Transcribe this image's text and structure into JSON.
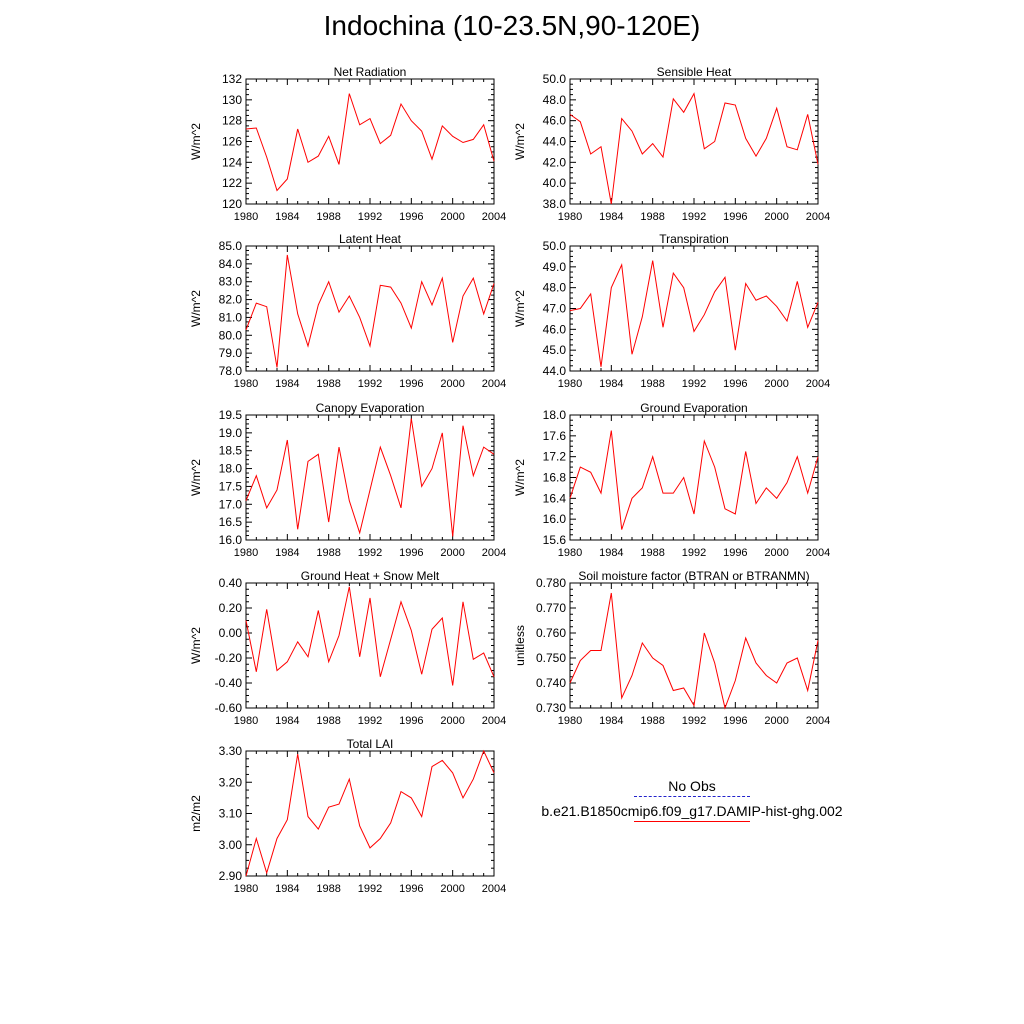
{
  "title": "Indochina (10-23.5N,90-120E)",
  "legend": {
    "obs_label": "No Obs",
    "case_label": "b.e21.B1850cmip6.f09_g17.DAMIP-hist-ghg.002",
    "obs_color": "#2222cc",
    "case_color": "#ff0000"
  },
  "chart_data": [
    {
      "type": "line",
      "title": "Net Radiation",
      "ylabel": "W/m^2",
      "ylim": [
        120,
        132
      ],
      "yticks": [
        "120",
        "122",
        "124",
        "126",
        "128",
        "130",
        "132"
      ],
      "xticks": [
        "1980",
        "1984",
        "1988",
        "1992",
        "1996",
        "2000",
        "2004"
      ],
      "xlim": [
        1980,
        2004
      ],
      "series": [
        {
          "color": "#ff0000",
          "x": [
            1980,
            1981,
            1982,
            1983,
            1984,
            1985,
            1986,
            1987,
            1988,
            1989,
            1990,
            1991,
            1992,
            1993,
            1994,
            1995,
            1996,
            1997,
            1998,
            1999,
            2000,
            2001,
            2002,
            2003,
            2004
          ],
          "values": [
            127.2,
            127.3,
            124.5,
            121.3,
            122.4,
            127.2,
            124.0,
            124.6,
            126.5,
            123.8,
            130.6,
            127.6,
            128.2,
            125.8,
            126.6,
            129.6,
            128.0,
            127.0,
            124.3,
            127.5,
            126.5,
            125.9,
            126.2,
            127.6,
            124.1
          ]
        }
      ]
    },
    {
      "type": "line",
      "title": "Sensible Heat",
      "ylabel": "W/m^2",
      "ylim": [
        38,
        50
      ],
      "yticks": [
        "38.0",
        "40.0",
        "42.0",
        "44.0",
        "46.0",
        "48.0",
        "50.0"
      ],
      "xticks": [
        "1980",
        "1984",
        "1988",
        "1992",
        "1996",
        "2000",
        "2004"
      ],
      "xlim": [
        1980,
        2004
      ],
      "series": [
        {
          "color": "#ff0000",
          "x": [
            1980,
            1981,
            1982,
            1983,
            1984,
            1985,
            1986,
            1987,
            1988,
            1989,
            1990,
            1991,
            1992,
            1993,
            1994,
            1995,
            1996,
            1997,
            1998,
            1999,
            2000,
            2001,
            2002,
            2003,
            2004
          ],
          "values": [
            46.6,
            45.9,
            42.8,
            43.5,
            38.0,
            46.2,
            45.0,
            42.8,
            43.8,
            42.5,
            48.1,
            46.8,
            48.6,
            43.3,
            44.0,
            47.7,
            47.5,
            44.3,
            42.6,
            44.3,
            47.2,
            43.5,
            43.2,
            46.6,
            41.8
          ]
        }
      ]
    },
    {
      "type": "line",
      "title": "Latent Heat",
      "ylabel": "W/m^2",
      "ylim": [
        78,
        85
      ],
      "yticks": [
        "78.0",
        "79.0",
        "80.0",
        "81.0",
        "82.0",
        "83.0",
        "84.0",
        "85.0"
      ],
      "xticks": [
        "1980",
        "1984",
        "1988",
        "1992",
        "1996",
        "2000",
        "2004"
      ],
      "xlim": [
        1980,
        2004
      ],
      "series": [
        {
          "color": "#ff0000",
          "x": [
            1980,
            1981,
            1982,
            1983,
            1984,
            1985,
            1986,
            1987,
            1988,
            1989,
            1990,
            1991,
            1992,
            1993,
            1994,
            1995,
            1996,
            1997,
            1998,
            1999,
            2000,
            2001,
            2002,
            2003,
            2004
          ],
          "values": [
            80.3,
            81.8,
            81.6,
            78.2,
            84.5,
            81.2,
            79.4,
            81.7,
            83.0,
            81.3,
            82.2,
            81.0,
            79.4,
            82.8,
            82.7,
            81.8,
            80.4,
            83.0,
            81.7,
            83.2,
            79.6,
            82.2,
            83.2,
            81.2,
            82.9
          ]
        }
      ]
    },
    {
      "type": "line",
      "title": "Transpiration",
      "ylabel": "W/m^2",
      "ylim": [
        44,
        50
      ],
      "yticks": [
        "44.0",
        "45.0",
        "46.0",
        "47.0",
        "48.0",
        "49.0",
        "50.0"
      ],
      "xticks": [
        "1980",
        "1984",
        "1988",
        "1992",
        "1996",
        "2000",
        "2004"
      ],
      "xlim": [
        1980,
        2004
      ],
      "series": [
        {
          "color": "#ff0000",
          "x": [
            1980,
            1981,
            1982,
            1983,
            1984,
            1985,
            1986,
            1987,
            1988,
            1989,
            1990,
            1991,
            1992,
            1993,
            1994,
            1995,
            1996,
            1997,
            1998,
            1999,
            2000,
            2001,
            2002,
            2003,
            2004
          ],
          "values": [
            46.9,
            47.0,
            47.7,
            44.2,
            48.0,
            49.1,
            44.8,
            46.6,
            49.3,
            46.1,
            48.7,
            48.0,
            45.9,
            46.7,
            47.8,
            48.5,
            45.0,
            48.2,
            47.4,
            47.6,
            47.1,
            46.4,
            48.3,
            46.1,
            47.3
          ]
        }
      ]
    },
    {
      "type": "line",
      "title": "Canopy Evaporation",
      "ylabel": "W/m^2",
      "ylim": [
        16,
        19.5
      ],
      "yticks": [
        "16.0",
        "16.5",
        "17.0",
        "17.5",
        "18.0",
        "18.5",
        "19.0",
        "19.5"
      ],
      "xticks": [
        "1980",
        "1984",
        "1988",
        "1992",
        "1996",
        "2000",
        "2004"
      ],
      "xlim": [
        1980,
        2004
      ],
      "series": [
        {
          "color": "#ff0000",
          "x": [
            1980,
            1981,
            1982,
            1983,
            1984,
            1985,
            1986,
            1987,
            1988,
            1989,
            1990,
            1991,
            1992,
            1993,
            1994,
            1995,
            1996,
            1997,
            1998,
            1999,
            2000,
            2001,
            2002,
            2003,
            2004
          ],
          "values": [
            17.1,
            17.8,
            16.9,
            17.4,
            18.8,
            16.3,
            18.2,
            18.4,
            16.5,
            18.6,
            17.1,
            16.2,
            17.4,
            18.6,
            17.8,
            16.9,
            19.4,
            17.5,
            18.0,
            19.0,
            16.1,
            19.2,
            17.8,
            18.6,
            18.4
          ]
        }
      ]
    },
    {
      "type": "line",
      "title": "Ground Evaporation",
      "ylabel": "W/m^2",
      "ylim": [
        15.6,
        18
      ],
      "yticks": [
        "15.6",
        "16.0",
        "16.4",
        "16.8",
        "17.2",
        "17.6",
        "18.0"
      ],
      "xticks": [
        "1980",
        "1984",
        "1988",
        "1992",
        "1996",
        "2000",
        "2004"
      ],
      "xlim": [
        1980,
        2004
      ],
      "series": [
        {
          "color": "#ff0000",
          "x": [
            1980,
            1981,
            1982,
            1983,
            1984,
            1985,
            1986,
            1987,
            1988,
            1989,
            1990,
            1991,
            1992,
            1993,
            1994,
            1995,
            1996,
            1997,
            1998,
            1999,
            2000,
            2001,
            2002,
            2003,
            2004
          ],
          "values": [
            16.4,
            17.0,
            16.9,
            16.5,
            17.7,
            15.8,
            16.4,
            16.6,
            17.2,
            16.5,
            16.5,
            16.8,
            16.1,
            17.5,
            17.0,
            16.2,
            16.1,
            17.3,
            16.3,
            16.6,
            16.4,
            16.7,
            17.2,
            16.5,
            17.2
          ]
        }
      ]
    },
    {
      "type": "line",
      "title": "Ground Heat + Snow Melt",
      "ylabel": "W/m^2",
      "ylim": [
        -0.6,
        0.4
      ],
      "yticks": [
        "-0.60",
        "-0.40",
        "-0.20",
        "0.00",
        "0.20",
        "0.40"
      ],
      "xticks": [
        "1980",
        "1984",
        "1988",
        "1992",
        "1996",
        "2000",
        "2004"
      ],
      "xlim": [
        1980,
        2004
      ],
      "series": [
        {
          "color": "#ff0000",
          "x": [
            1980,
            1981,
            1982,
            1983,
            1984,
            1985,
            1986,
            1987,
            1988,
            1989,
            1990,
            1991,
            1992,
            1993,
            1994,
            1995,
            1996,
            1997,
            1998,
            1999,
            2000,
            2001,
            2002,
            2003,
            2004
          ],
          "values": [
            0.1,
            -0.31,
            0.19,
            -0.3,
            -0.23,
            -0.07,
            -0.19,
            0.18,
            -0.23,
            -0.02,
            0.37,
            -0.19,
            0.28,
            -0.35,
            -0.05,
            0.25,
            0.02,
            -0.33,
            0.03,
            0.12,
            -0.42,
            0.25,
            -0.21,
            -0.16,
            -0.35
          ]
        }
      ]
    },
    {
      "type": "line",
      "title": "Soil moisture factor (BTRAN or BTRANMN)",
      "ylabel": "unitless",
      "ylim": [
        0.73,
        0.78
      ],
      "yticks": [
        "0.730",
        "0.740",
        "0.750",
        "0.760",
        "0.770",
        "0.780"
      ],
      "xticks": [
        "1980",
        "1984",
        "1988",
        "1992",
        "1996",
        "2000",
        "2004"
      ],
      "xlim": [
        1980,
        2004
      ],
      "series": [
        {
          "color": "#ff0000",
          "x": [
            1980,
            1981,
            1982,
            1983,
            1984,
            1985,
            1986,
            1987,
            1988,
            1989,
            1990,
            1991,
            1992,
            1993,
            1994,
            1995,
            1996,
            1997,
            1998,
            1999,
            2000,
            2001,
            2002,
            2003,
            2004
          ],
          "values": [
            0.74,
            0.749,
            0.753,
            0.753,
            0.776,
            0.734,
            0.743,
            0.756,
            0.75,
            0.747,
            0.737,
            0.738,
            0.731,
            0.76,
            0.748,
            0.73,
            0.741,
            0.758,
            0.748,
            0.743,
            0.74,
            0.748,
            0.75,
            0.737,
            0.757
          ]
        }
      ]
    },
    {
      "type": "line",
      "title": "Total LAI",
      "ylabel": "m2/m2",
      "ylim": [
        2.9,
        3.3
      ],
      "yticks": [
        "2.90",
        "3.00",
        "3.10",
        "3.20",
        "3.30"
      ],
      "xticks": [
        "1980",
        "1984",
        "1988",
        "1992",
        "1996",
        "2000",
        "2004"
      ],
      "xlim": [
        1980,
        2004
      ],
      "series": [
        {
          "color": "#ff0000",
          "x": [
            1980,
            1981,
            1982,
            1983,
            1984,
            1985,
            1986,
            1987,
            1988,
            1989,
            1990,
            1991,
            1992,
            1993,
            1994,
            1995,
            1996,
            1997,
            1998,
            1999,
            2000,
            2001,
            2002,
            2003,
            2004
          ],
          "values": [
            2.9,
            3.02,
            2.91,
            3.02,
            3.08,
            3.29,
            3.09,
            3.05,
            3.12,
            3.13,
            3.21,
            3.06,
            2.99,
            3.02,
            3.07,
            3.17,
            3.15,
            3.09,
            3.25,
            3.27,
            3.23,
            3.15,
            3.21,
            3.3,
            3.23
          ]
        }
      ]
    }
  ]
}
